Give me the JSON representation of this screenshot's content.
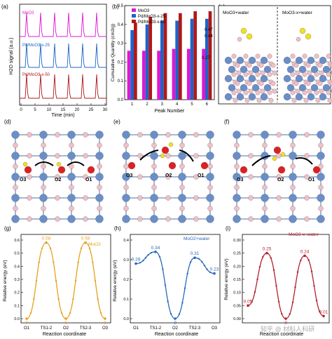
{
  "panel_labels": [
    "(a)",
    "(b)",
    "(c)",
    "(d)",
    "(e)",
    "(f)",
    "(g)",
    "(h)",
    "(i)"
  ],
  "colors": {
    "moo3": "#e018d0",
    "pd25": "#1e64c8",
    "pd50": "#b01818",
    "orange": "#e8a020",
    "blue": "#2a6ab8",
    "red": "#b22030",
    "mo": "#6a8fc8",
    "o": "#f2c0c4",
    "ored": "#e02020",
    "oyellow": "#f2e020"
  },
  "panel_a": {
    "traces": [
      "MoO3",
      "Pd/MoO3-x-25",
      "Pd/MoO3-x-50"
    ],
    "ylabel": "H2O signal (a.u.)",
    "xlabel": "Time (min)",
    "xticks": [
      "0",
      "5",
      "10",
      "15",
      "20",
      "25",
      "30"
    ]
  },
  "chart_data": [
    {
      "type": "bar",
      "categories": [
        "1",
        "2",
        "3",
        "4",
        "5",
        "6"
      ],
      "series": [
        {
          "name": "MoO3",
          "values": [
            0.26,
            0.26,
            0.26,
            0.27,
            0.27,
            0.27
          ]
        },
        {
          "name": "Pd/MoO3-x-25",
          "values": [
            0.37,
            0.4,
            0.42,
            0.42,
            0.43,
            0.43
          ]
        },
        {
          "name": "Pd/MoO3-x-50",
          "values": [
            0.41,
            0.44,
            0.46,
            0.46,
            0.47,
            0.47
          ]
        }
      ],
      "xlabel": "Peak Number",
      "ylabel": "Cumulative Quantity (cm3/g)",
      "ylim": [
        0,
        0.5
      ],
      "yticks": [
        "0.0",
        "0.1",
        "0.2",
        "0.3",
        "0.4",
        "0.5"
      ],
      "annotations": [
        "0.47",
        "0.44",
        "0.27"
      ]
    },
    {
      "type": "line",
      "categories": [
        "O1",
        "TS1-2",
        "O2",
        "TS2-3",
        "O3"
      ],
      "values": [
        0,
        0.58,
        0,
        0.58,
        0
      ],
      "legend": "MoO3",
      "point_labels": [
        "0",
        "0.58",
        "0",
        "0.58",
        "0"
      ],
      "xlabel": "Reaction coordinate",
      "ylabel": "Relative energy (eV)",
      "ylim": [
        0,
        0.6
      ],
      "yticks": [
        "0.0",
        "0.1",
        "0.2",
        "0.3",
        "0.4",
        "0.5",
        "0.6"
      ]
    },
    {
      "type": "line",
      "categories": [
        "O1",
        "TS1-2",
        "O2",
        "TS2-3",
        "O3"
      ],
      "values": [
        0.28,
        0.34,
        0,
        0.31,
        0.23
      ],
      "legend": "MoO2+water",
      "point_labels": [
        "0.28",
        "0.34",
        "0",
        "0.31",
        "0.23"
      ],
      "xlabel": "Reaction coordinate",
      "ylabel": "Relative energy (eV)",
      "ylim": [
        0,
        0.4
      ],
      "yticks": [
        "0.0",
        "0.1",
        "0.2",
        "0.3",
        "0.4"
      ]
    },
    {
      "type": "line",
      "categories": [
        "",
        "",
        "",
        "",
        ""
      ],
      "values": [
        0.05,
        0.25,
        0,
        0.24,
        0.01
      ],
      "legend": "MoO3-x+water",
      "point_labels": [
        "0.05",
        "0.25",
        "0",
        "0.24",
        "0.01"
      ],
      "xlabel": "Reaction coordinate",
      "ylabel": "Relative energy (eV)",
      "ylim": [
        0,
        0.3
      ],
      "yticks": [
        "0.00",
        "0.05",
        "0.10",
        "0.15",
        "0.20",
        "0.25",
        "0.30"
      ]
    }
  ],
  "panel_c": {
    "left": "MoO3+water",
    "right": "MoO3-x+water"
  },
  "panel_d": {
    "labels": [
      "O3",
      "O2",
      "O1"
    ]
  },
  "panel_e": {
    "labels": [
      "O3",
      "O2",
      "O1"
    ]
  },
  "panel_f": {
    "labels": [
      "O3",
      "O2",
      "O1"
    ]
  },
  "watermark": "知乎 @ 材料人科研"
}
